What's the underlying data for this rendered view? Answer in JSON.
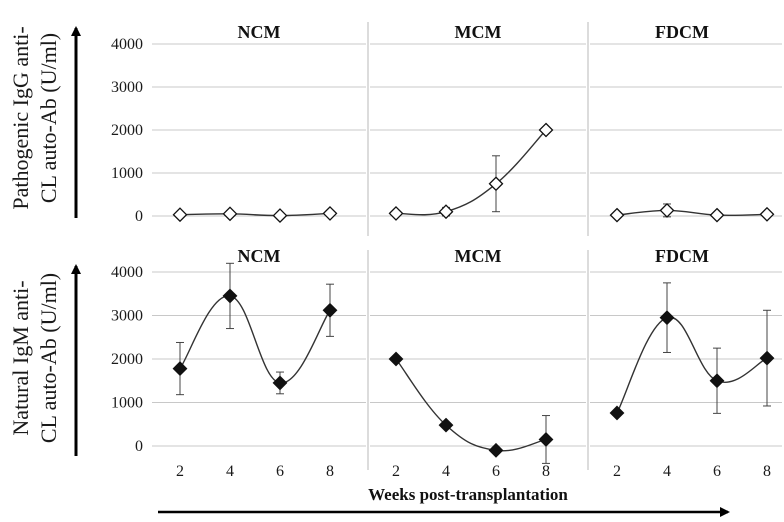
{
  "chart_data": [
    {
      "type": "line",
      "title": "NCM",
      "row": "top",
      "ylabel": "Pathogenic IgG anti-CL auto-Ab (U/ml)",
      "ylim": [
        0,
        4000
      ],
      "yticks": [
        0,
        1000,
        2000,
        3000,
        4000
      ],
      "x": [
        2,
        4,
        6,
        8
      ],
      "series": [
        {
          "values": [
            30,
            50,
            10,
            60
          ],
          "err": [
            30,
            40,
            20,
            40
          ],
          "marker": "open-diamond"
        }
      ]
    },
    {
      "type": "line",
      "title": "MCM",
      "row": "top",
      "ylim": [
        0,
        4000
      ],
      "x": [
        2,
        4,
        6,
        8
      ],
      "series": [
        {
          "values": [
            60,
            100,
            750,
            2000
          ],
          "err": [
            30,
            100,
            650,
            0
          ],
          "marker": "open-diamond"
        }
      ]
    },
    {
      "type": "line",
      "title": "FDCM",
      "row": "top",
      "ylim": [
        0,
        4000
      ],
      "x": [
        2,
        4,
        6,
        8
      ],
      "series": [
        {
          "values": [
            20,
            130,
            20,
            40
          ],
          "err": [
            20,
            150,
            20,
            30
          ],
          "marker": "open-diamond"
        }
      ]
    },
    {
      "type": "line",
      "title": "NCM",
      "row": "bottom",
      "ylabel": "Natural IgM anti-CL auto-Ab (U/ml)",
      "ylim": [
        0,
        4000
      ],
      "yticks": [
        0,
        1000,
        2000,
        3000,
        4000
      ],
      "x": [
        2,
        4,
        6,
        8
      ],
      "xticks": [
        "2",
        "4",
        "6",
        "8"
      ],
      "series": [
        {
          "values": [
            1780,
            3450,
            1450,
            3120
          ],
          "err": [
            600,
            750,
            250,
            600
          ],
          "marker": "filled-diamond"
        }
      ]
    },
    {
      "type": "line",
      "title": "MCM",
      "row": "bottom",
      "ylim": [
        0,
        4000
      ],
      "x": [
        2,
        4,
        6,
        8
      ],
      "xticks": [
        "2",
        "4",
        "6",
        "8"
      ],
      "series": [
        {
          "values": [
            2000,
            480,
            -100,
            150
          ],
          "err": [
            0,
            0,
            0,
            550
          ],
          "marker": "filled-diamond"
        }
      ]
    },
    {
      "type": "line",
      "title": "FDCM",
      "row": "bottom",
      "ylim": [
        0,
        4000
      ],
      "x": [
        2,
        4,
        6,
        8
      ],
      "xticks": [
        "2",
        "4",
        "6",
        "8"
      ],
      "series": [
        {
          "values": [
            760,
            2950,
            1500,
            2020
          ],
          "err": [
            0,
            800,
            750,
            1100
          ],
          "marker": "filled-diamond"
        }
      ]
    }
  ],
  "labels": {
    "top_ylabel_line1": "Pathogenic IgG anti-",
    "top_ylabel_line2": "CL auto-Ab (U/ml)",
    "bottom_ylabel_line1": "Natural IgM anti-",
    "bottom_ylabel_line2": "CL auto-Ab (U/ml)",
    "xlabel": "Weeks post-transplantation"
  },
  "colors": {
    "line": "#333333",
    "marker": "#111111",
    "grid": "#c8c8c8",
    "divider": "#b8b8b8"
  }
}
